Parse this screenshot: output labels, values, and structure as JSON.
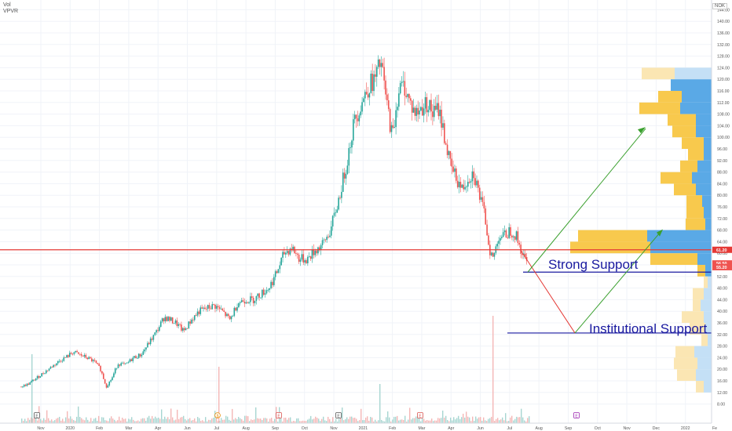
{
  "header": {
    "volume_label": "Vol",
    "vpvr_label": "VPVR",
    "currency": "NOK"
  },
  "annotations": {
    "strong_support": "Strong Support",
    "institutional_support": "Institutional Support"
  },
  "colors": {
    "up": "#26a69a",
    "down": "#ef5350",
    "resistance_line": "#e53935",
    "support_line": "#1a1aa0",
    "arrow_down": "#e53935",
    "arrow_up": "#3aa02e",
    "vp_up": "#5aa9e6",
    "vp_down": "#f8c94d",
    "vp_up_light": "#c4e0f6",
    "vp_down_light": "#fbe6b3"
  },
  "chart_data": {
    "type": "candlestick",
    "y_axis": {
      "ticks": [
        8,
        12,
        16,
        20,
        24,
        28,
        32,
        36,
        40,
        44,
        48,
        52,
        56,
        60,
        64,
        68,
        72,
        76,
        80,
        84,
        88,
        92,
        96,
        100,
        104,
        108,
        112,
        116,
        120,
        124,
        128,
        132,
        136,
        140,
        144
      ],
      "range": [
        6,
        146
      ]
    },
    "x_axis": {
      "labels": [
        "Nov",
        "2020",
        "Feb",
        "Mar",
        "Apr",
        "Jun",
        "Jul",
        "Aug",
        "Sep",
        "Oct",
        "Nov",
        "2021",
        "Feb",
        "Mar",
        "Apr",
        "Jun",
        "Jul",
        "Aug",
        "Sep",
        "Oct",
        "Nov",
        "Dec",
        "2022",
        "Fe"
      ]
    },
    "price_labels": [
      {
        "value": 61.2,
        "text": "61.20",
        "color": "#e53935"
      },
      {
        "value": 56.5,
        "text": "56.50",
        "color": "#ef5350"
      },
      {
        "value": 55.2,
        "text": "55.20",
        "color": "#ef5350"
      }
    ],
    "price_path": [
      [
        0,
        14
      ],
      [
        0.02,
        15
      ],
      [
        0.04,
        17
      ],
      [
        0.06,
        19
      ],
      [
        0.08,
        21
      ],
      [
        0.1,
        23
      ],
      [
        0.12,
        24.5
      ],
      [
        0.135,
        26
      ],
      [
        0.15,
        25
      ],
      [
        0.17,
        24
      ],
      [
        0.19,
        22.5
      ],
      [
        0.205,
        20
      ],
      [
        0.22,
        14
      ],
      [
        0.235,
        17
      ],
      [
        0.25,
        22
      ],
      [
        0.27,
        21.5
      ],
      [
        0.29,
        24
      ],
      [
        0.31,
        25
      ],
      [
        0.33,
        29
      ],
      [
        0.35,
        33
      ],
      [
        0.37,
        38
      ],
      [
        0.385,
        37
      ],
      [
        0.4,
        36
      ],
      [
        0.42,
        33
      ],
      [
        0.44,
        37
      ],
      [
        0.46,
        40
      ],
      [
        0.48,
        41
      ],
      [
        0.5,
        42
      ],
      [
        0.52,
        40
      ],
      [
        0.54,
        37
      ],
      [
        0.56,
        43
      ],
      [
        0.58,
        44
      ],
      [
        0.6,
        44
      ],
      [
        0.62,
        46
      ],
      [
        0.64,
        48
      ],
      [
        0.66,
        53
      ],
      [
        0.68,
        60
      ],
      [
        0.7,
        62
      ],
      [
        0.72,
        58
      ],
      [
        0.74,
        58
      ],
      [
        0.76,
        61
      ],
      [
        0.78,
        63
      ],
      [
        0.8,
        68
      ],
      [
        0.82,
        78
      ],
      [
        0.84,
        90
      ],
      [
        0.86,
        105
      ],
      [
        0.88,
        112
      ],
      [
        0.9,
        118
      ],
      [
        0.915,
        120
      ],
      [
        0.93,
        126
      ],
      [
        0.945,
        112
      ],
      [
        0.96,
        100
      ],
      [
        0.975,
        116
      ],
      [
        0.99,
        118
      ],
      [
        1.005,
        112
      ],
      [
        1.02,
        108
      ],
      [
        1.035,
        110
      ],
      [
        1.05,
        112
      ],
      [
        1.065,
        108
      ],
      [
        1.08,
        110
      ],
      [
        1.095,
        100
      ],
      [
        1.11,
        90
      ],
      [
        1.125,
        86
      ],
      [
        1.14,
        82
      ],
      [
        1.155,
        86
      ],
      [
        1.17,
        88
      ],
      [
        1.185,
        80
      ],
      [
        1.2,
        72
      ],
      [
        1.21,
        62
      ],
      [
        1.22,
        58
      ],
      [
        1.235,
        66
      ],
      [
        1.25,
        66
      ],
      [
        1.265,
        68
      ],
      [
        1.28,
        66
      ],
      [
        1.295,
        60
      ],
      [
        1.31,
        56
      ]
    ],
    "volume_profile": [
      {
        "price": 122,
        "up": 47,
        "down": 42,
        "light": true
      },
      {
        "price": 118,
        "up": 52,
        "down": 0,
        "light": false
      },
      {
        "price": 114,
        "up": 38,
        "down": 30,
        "light": false
      },
      {
        "price": 110,
        "up": 40,
        "down": 52,
        "light": false
      },
      {
        "price": 106,
        "up": 20,
        "down": 36,
        "light": false
      },
      {
        "price": 102,
        "up": 20,
        "down": 30,
        "light": false
      },
      {
        "price": 98,
        "up": 10,
        "down": 28,
        "light": false
      },
      {
        "price": 94,
        "up": 10,
        "down": 20,
        "light": false
      },
      {
        "price": 90,
        "up": 18,
        "down": 22,
        "light": false
      },
      {
        "price": 86,
        "up": 25,
        "down": 40,
        "light": false
      },
      {
        "price": 82,
        "up": 20,
        "down": 28,
        "light": false
      },
      {
        "price": 78,
        "up": 12,
        "down": 20,
        "light": false
      },
      {
        "price": 74,
        "up": 10,
        "down": 22,
        "light": false
      },
      {
        "price": 70,
        "up": 8,
        "down": 25,
        "light": false
      },
      {
        "price": 66,
        "up": 82,
        "down": 88,
        "light": false
      },
      {
        "price": 62,
        "up": 78,
        "down": 102,
        "light": false
      },
      {
        "price": 58,
        "up": 18,
        "down": 60,
        "light": false
      },
      {
        "price": 54,
        "up": 8,
        "down": 10,
        "light": false
      },
      {
        "price": 50,
        "up": 5,
        "down": 5,
        "light": true
      },
      {
        "price": 46,
        "up": 10,
        "down": 14,
        "light": true
      },
      {
        "price": 42,
        "up": 14,
        "down": 10,
        "light": true
      },
      {
        "price": 38,
        "up": 10,
        "down": 28,
        "light": true
      },
      {
        "price": 34,
        "up": 8,
        "down": 20,
        "light": true
      },
      {
        "price": 30,
        "up": 5,
        "down": 8,
        "light": true
      },
      {
        "price": 26,
        "up": 22,
        "down": 24,
        "light": true
      },
      {
        "price": 22,
        "up": 18,
        "down": 30,
        "light": true
      },
      {
        "price": 18,
        "up": 20,
        "down": 24,
        "light": true
      },
      {
        "price": 14,
        "up": 10,
        "down": 10,
        "light": true
      }
    ],
    "levels": {
      "resistance": 61.2,
      "strong_support": 53.5,
      "institutional_support": 32.5
    },
    "projection": {
      "down_start_price": 61,
      "down_end_price": 32.5,
      "up_from_strong": [
        53.5,
        103
      ],
      "up_from_inst": [
        32.5,
        68
      ]
    },
    "event_markers": [
      "E",
      "$",
      "E",
      "E",
      "E",
      "E"
    ]
  }
}
